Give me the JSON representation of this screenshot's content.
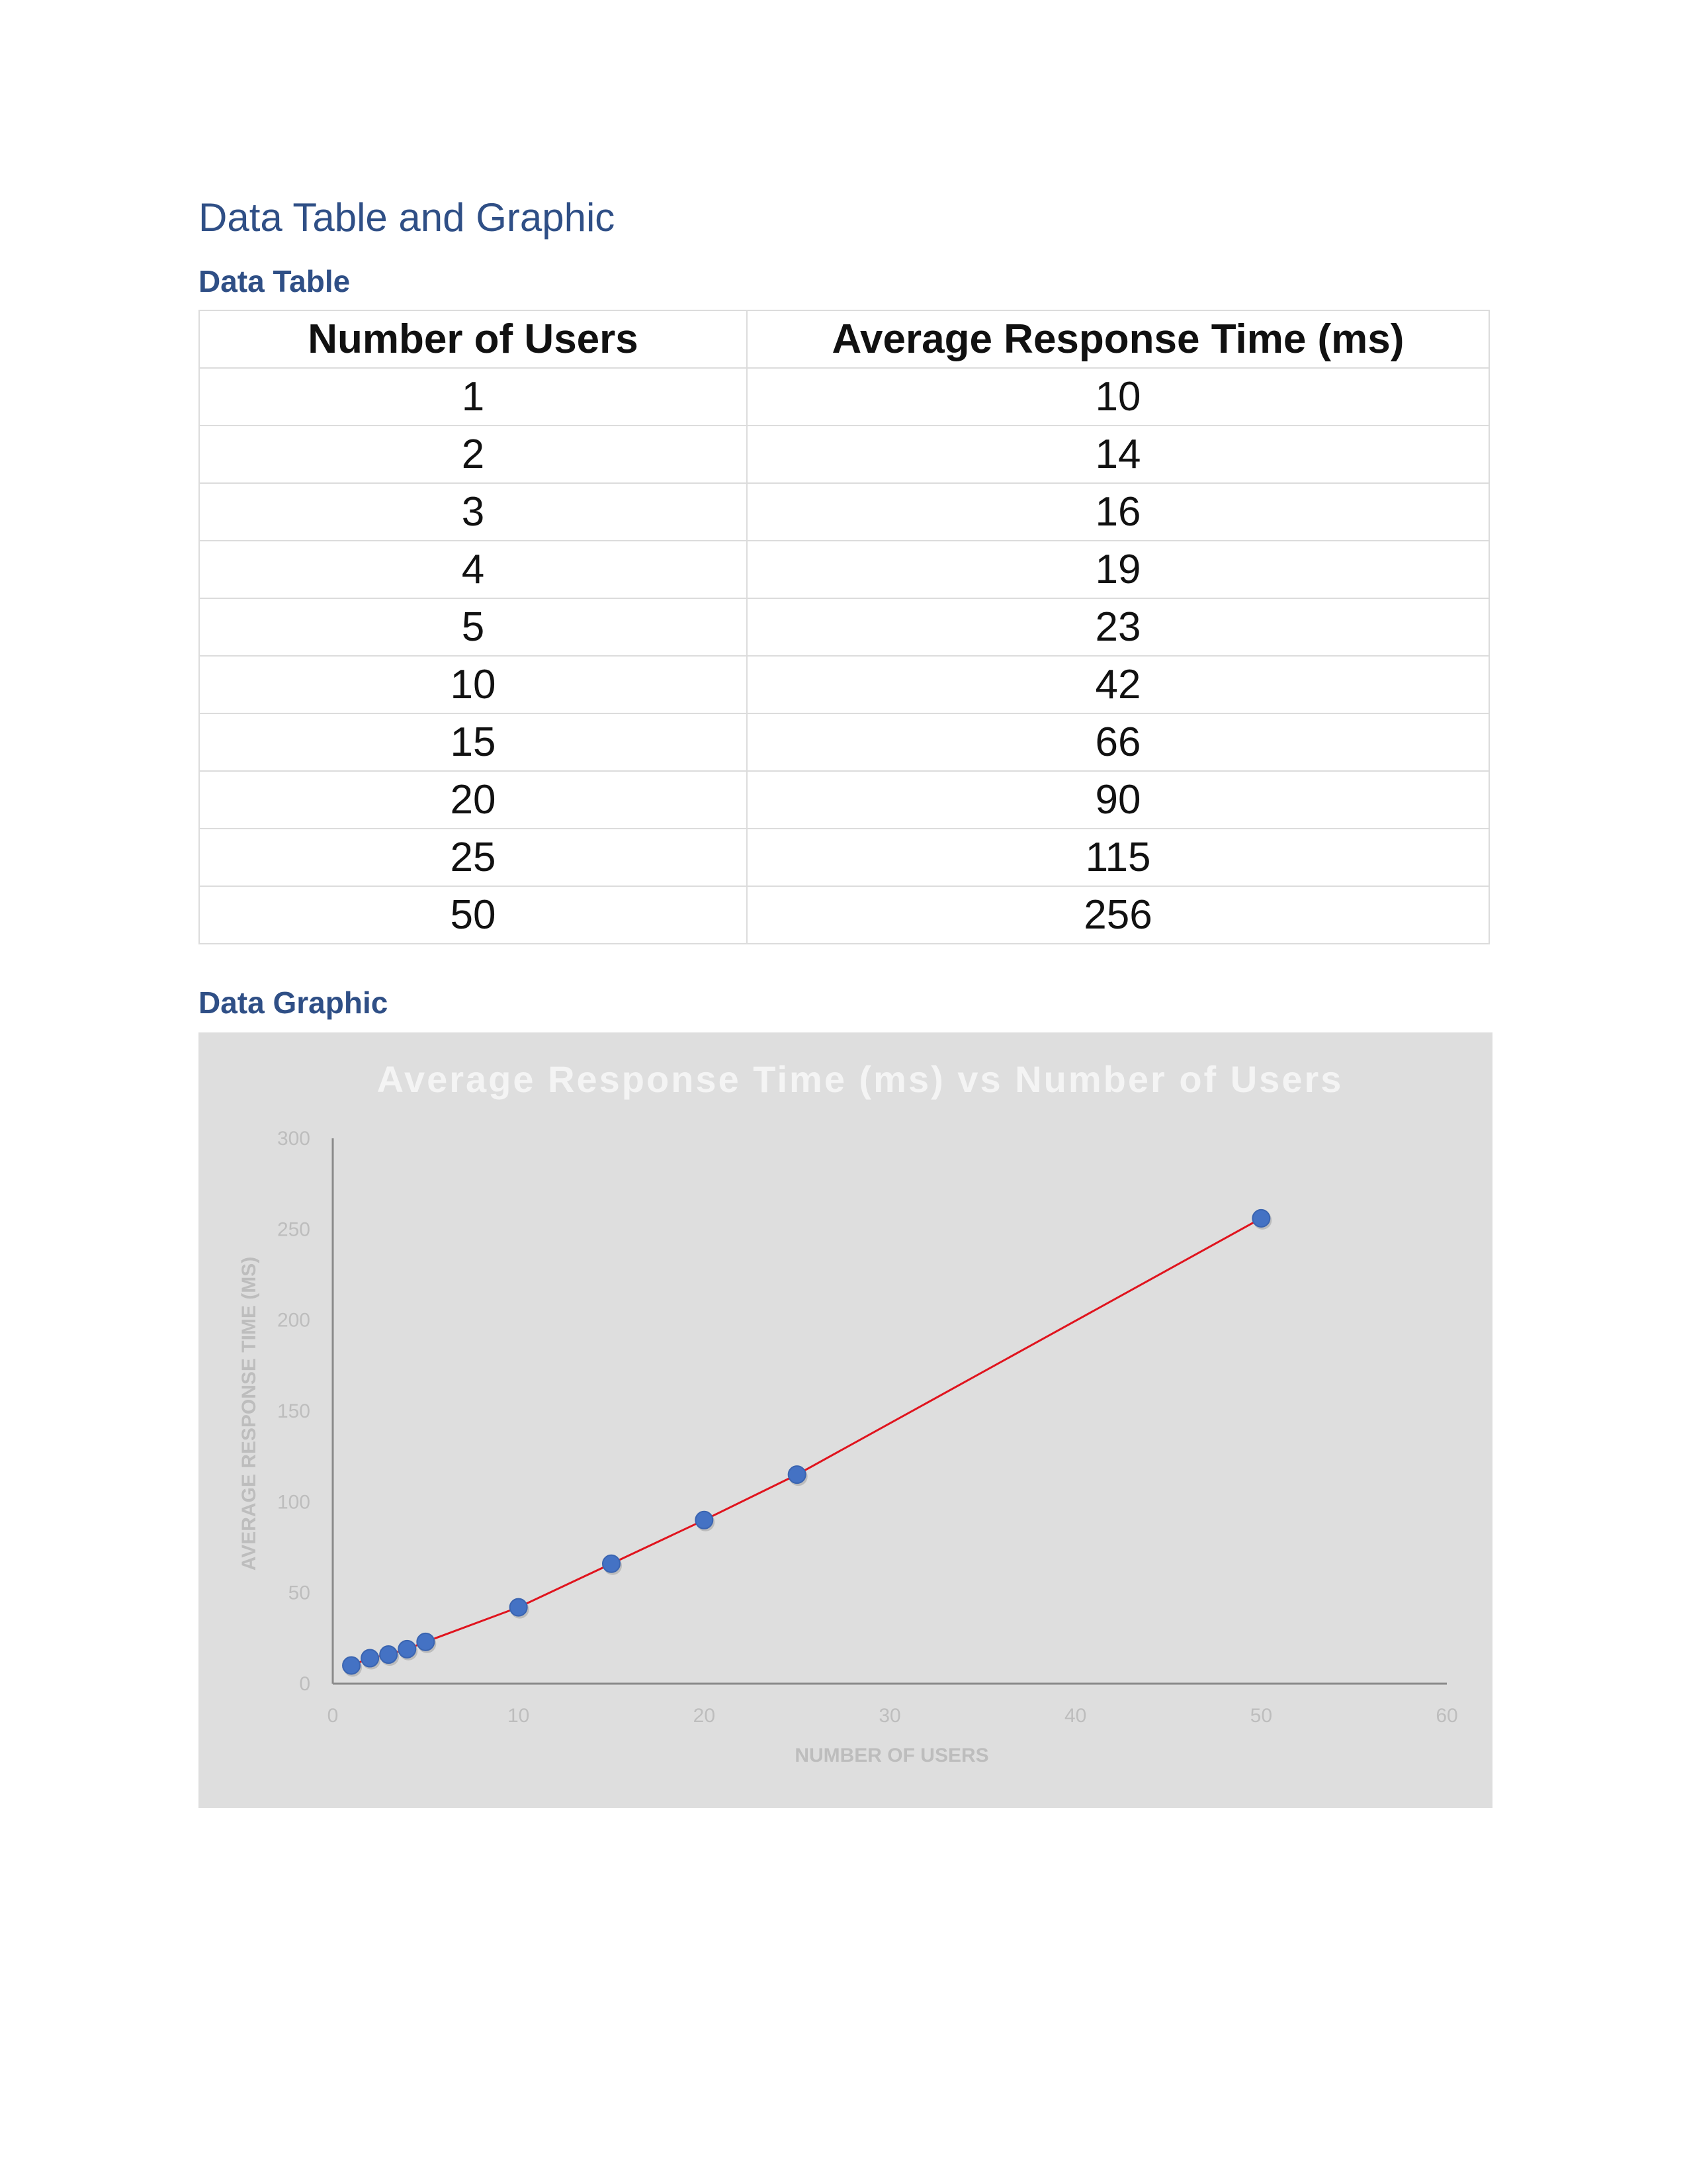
{
  "document": {
    "title": "Data Table and Graphic",
    "table_heading": "Data Table",
    "graphic_heading": "Data Graphic"
  },
  "table": {
    "headers": [
      "Number of Users",
      "Average Response Time (ms)"
    ],
    "rows": [
      [
        "1",
        "10"
      ],
      [
        "2",
        "14"
      ],
      [
        "3",
        "16"
      ],
      [
        "4",
        "19"
      ],
      [
        "5",
        "23"
      ],
      [
        "10",
        "42"
      ],
      [
        "15",
        "66"
      ],
      [
        "20",
        "90"
      ],
      [
        "25",
        "115"
      ],
      [
        "50",
        "256"
      ]
    ]
  },
  "chart_data": {
    "type": "scatter",
    "title": "Average Response Time (ms) vs Number of Users",
    "xlabel": "NUMBER OF USERS",
    "ylabel": "AVERAGE RESPONSE TIME (MS)",
    "xlim": [
      0,
      60
    ],
    "ylim": [
      0,
      300
    ],
    "x_ticks": [
      0,
      10,
      20,
      30,
      40,
      50,
      60
    ],
    "y_ticks": [
      0,
      50,
      100,
      150,
      200,
      250,
      300
    ],
    "series": [
      {
        "x": [
          1,
          2,
          3,
          4,
          5,
          10,
          15,
          20,
          25,
          50
        ],
        "y": [
          10,
          14,
          16,
          19,
          23,
          42,
          66,
          90,
          115,
          256
        ],
        "marker_color": "#4472c4",
        "line_color": "#e0141e"
      }
    ],
    "background": "#dedede",
    "grid": false
  }
}
